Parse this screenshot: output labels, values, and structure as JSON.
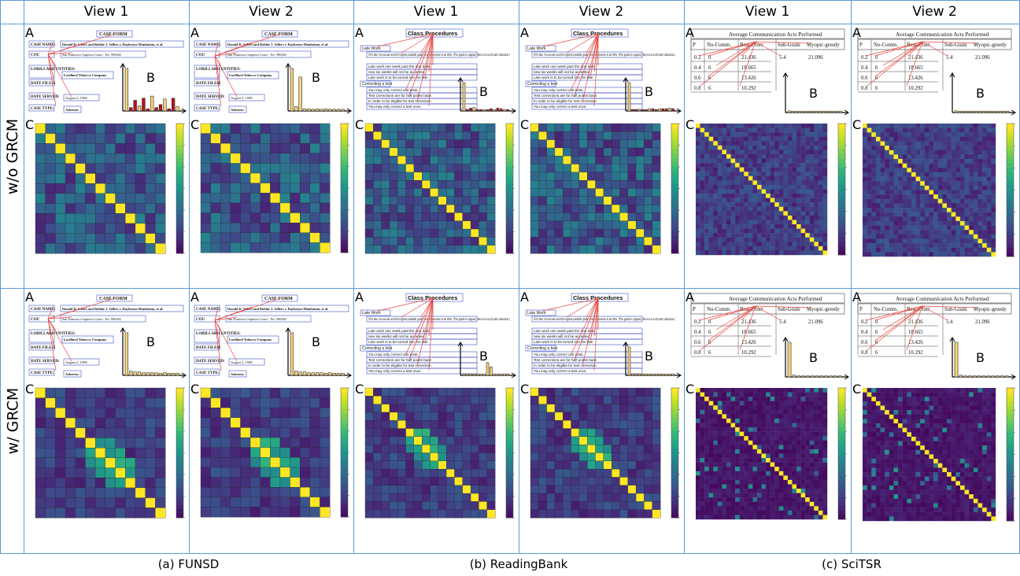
{
  "columns": [
    "View 1",
    "View 2",
    "View 1",
    "View 2",
    "View 1",
    "View 2"
  ],
  "rows": [
    "w/o GRCM",
    "w/ GRCM"
  ],
  "captions": [
    "(a) FUNSD",
    "(b) ReadingBank",
    "(c) SciTSR"
  ],
  "panel_letters": {
    "a": "A",
    "b": "B",
    "c": "C"
  },
  "funsd": {
    "title": "CASE FORM",
    "fields": [
      "CASE NAME:",
      "COU",
      "LORILLARD ENTITIES:",
      "DATE FILED:",
      "DATE SERVED:",
      "CASE TYPE:"
    ],
    "values": [
      "Donald D. Sellers and Robbie J. Sellers v. Raybestos-Manhattan, et al.",
      "San Francisco Superior Court - No. 996382",
      "Lorillard Tobacco Company",
      "August 3, 1998",
      "Asbestos"
    ]
  },
  "readingbank": {
    "title": "Class Procedures",
    "items": [
      "Late Work",
      "If it's late, No excuse and the highest possible grade one can receive is an 80%. (The grade is capped, this is not a 20 point reduction.)",
      "Late work one week past the due date",
      "new six weeks will not be accepted.",
      "Late work is to be turned into the late",
      "Correcting a test",
      "You may only correct unit tests.",
      "Test corrections are for half points back",
      "In order to be eligible for test correction",
      "You may only correct a test once."
    ]
  },
  "scitsr": {
    "title": "Average Communication Acts Performed",
    "headers": [
      "P",
      "No-Comm.",
      "Best-effort",
      "Sub-Goals",
      "Myopic-greedy"
    ],
    "rows": [
      [
        "0.2",
        "0",
        "21.436",
        "5.4",
        "21.096"
      ],
      [
        "0.4",
        "6",
        "18.665",
        "",
        ""
      ],
      [
        "0.6",
        "6",
        "13.426",
        "",
        ""
      ],
      [
        "0.8",
        "6",
        "10.292",
        "",
        ""
      ]
    ]
  },
  "colors": {
    "grid": "#5b9bd5",
    "link": "#e8443a",
    "box": "#3a4fc8",
    "viridis_low": "#440154",
    "viridis_high": "#fde725"
  },
  "chart_data": [
    {
      "type": "bar",
      "panel": "FUNSD w/o GRCM View 1 B",
      "values": [
        1.0,
        0.08,
        0.25,
        0.12,
        0.3,
        0.05,
        0.35,
        0.08,
        0.15,
        0.28,
        0.05,
        0.3,
        0.1
      ]
    },
    {
      "type": "bar",
      "panel": "FUNSD w/o GRCM View 2 B",
      "values": [
        1.0,
        0.1,
        0.8,
        0.05,
        0.05,
        0.04,
        0.05,
        0.04,
        0.05,
        0.04,
        0.04,
        0.04,
        0.04
      ]
    },
    {
      "type": "bar",
      "panel": "ReadingBank w/o GRCM View 1 B",
      "values": [
        1.0,
        0.05,
        0.1,
        0.12,
        0.05,
        0.05,
        0.05,
        0.05,
        0.08,
        0.05,
        0.1,
        0.08,
        0.05,
        0.05
      ]
    },
    {
      "type": "bar",
      "panel": "ReadingBank w/o GRCM View 2 B",
      "values": [
        1.0,
        0.05,
        0.05,
        0.05,
        0.05,
        0.05,
        0.08,
        0.08,
        0.05,
        0.08,
        0.08,
        0.08,
        0.1,
        0.08
      ]
    },
    {
      "type": "bar",
      "panel": "SciTSR w/o GRCM B",
      "values": [
        0.05,
        0.04,
        0.04,
        0.04,
        0.04,
        0.04,
        0.04,
        0.04,
        0.04,
        0.04,
        0.04,
        0.04,
        0.04,
        0.04,
        0.04,
        0.04
      ]
    },
    {
      "type": "bar",
      "panel": "FUNSD w/ GRCM B",
      "values": [
        1.0,
        0.1,
        0.08,
        0.08,
        0.06,
        0.06,
        0.06,
        0.06,
        0.05,
        0.06,
        0.05,
        0.05,
        0.05
      ]
    },
    {
      "type": "bar",
      "panel": "ReadingBank w/ GRCM View 1 B",
      "values": [
        0.05,
        0.05,
        0.05,
        0.05,
        0.05,
        0.05,
        0.05,
        0.45,
        0.3,
        0.05,
        0.05,
        0.05,
        0.05,
        0.05
      ]
    },
    {
      "type": "bar",
      "panel": "ReadingBank w/ GRCM View 2 B",
      "values": [
        1.0,
        0.05,
        0.05,
        0.05,
        0.05,
        0.05,
        0.05,
        0.05,
        0.05,
        0.05,
        0.05,
        0.05,
        0.05,
        0.05
      ]
    },
    {
      "type": "bar",
      "panel": "SciTSR w/ GRCM B",
      "values": [
        1.0,
        0.05,
        0.03,
        0.03,
        0.03,
        0.03,
        0.03,
        0.03,
        0.03,
        0.03,
        0.03,
        0.03
      ]
    },
    {
      "type": "heatmap",
      "panel": "FUNSD C",
      "size": 13,
      "diagonal": 1.0
    },
    {
      "type": "heatmap",
      "panel": "ReadingBank C",
      "size": 16,
      "diagonal": 1.0
    },
    {
      "type": "heatmap",
      "panel": "SciTSR C",
      "size": 30,
      "diagonal": 1.0
    }
  ]
}
